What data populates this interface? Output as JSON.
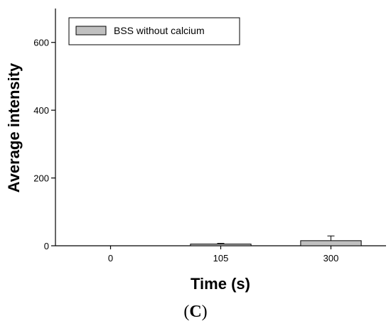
{
  "chart_data": {
    "type": "bar",
    "categories": [
      "0",
      "105",
      "300"
    ],
    "series": [
      {
        "name": "BSS without calcium",
        "values": [
          0,
          5,
          15
        ],
        "errors": [
          0,
          2,
          14
        ],
        "color": "#c0c0c0"
      }
    ],
    "xlabel": "Time (s)",
    "ylabel": "Average intensity",
    "ylim": [
      0,
      700
    ],
    "yticks": [
      0,
      200,
      400,
      600
    ],
    "grid": false,
    "legend_position": "top-left"
  },
  "panel_label": {
    "open": "(",
    "letter": "C",
    "close": ")"
  }
}
